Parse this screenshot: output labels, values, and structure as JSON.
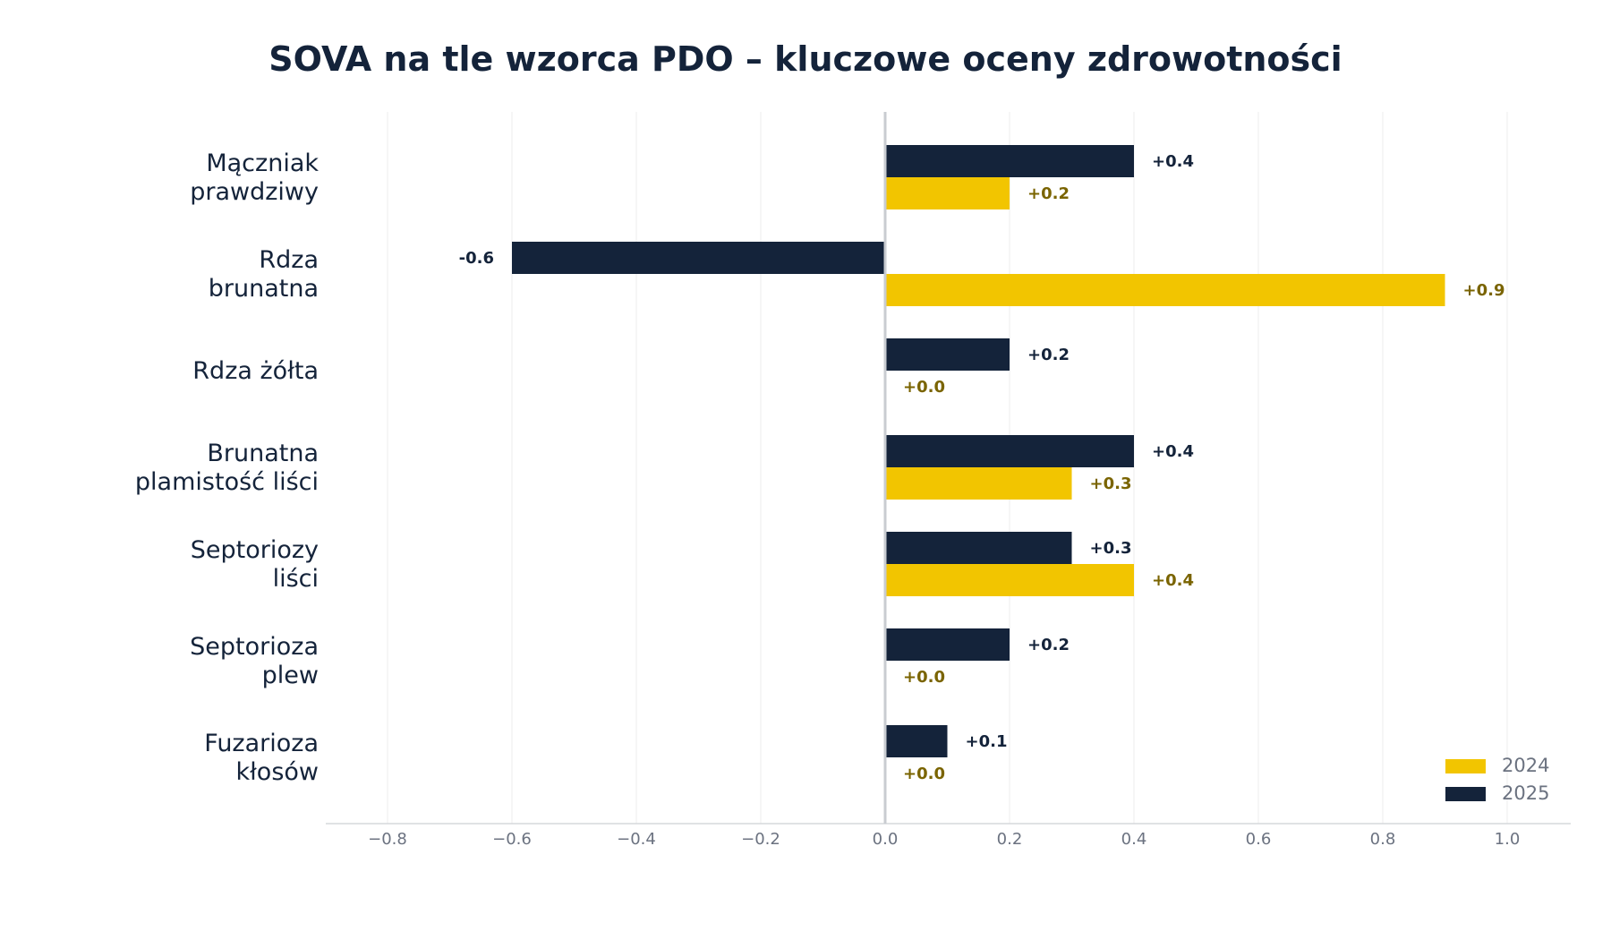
{
  "chart_data": {
    "type": "bar",
    "orientation": "horizontal",
    "title": "SOVA na tle wzorca PDO – kluczowe oceny zdrowotności",
    "xlabel": "",
    "ylabel": "",
    "categories": [
      [
        "Mączniak",
        "prawdziwy"
      ],
      [
        "Rdza",
        "brunatna"
      ],
      [
        "Rdza żółta"
      ],
      [
        "Brunatna",
        "plamistość liści"
      ],
      [
        "Septoriozy",
        "liści"
      ],
      [
        "Septorioza",
        "plew"
      ],
      [
        "Fuzarioza",
        "kłosów"
      ]
    ],
    "series": [
      {
        "name": "2025",
        "color": "#14233a",
        "label_color": "#14233a",
        "values": [
          0.4,
          -0.6,
          0.2,
          0.4,
          0.3,
          0.2,
          0.1
        ],
        "labels": [
          "+0.4",
          "-0.6",
          "+0.2",
          "+0.4",
          "+0.3",
          "+0.2",
          "+0.1"
        ]
      },
      {
        "name": "2024",
        "color": "#f2c500",
        "label_color": "#7a6400",
        "values": [
          0.2,
          0.9,
          0.0,
          0.3,
          0.4,
          0.0,
          0.0
        ],
        "labels": [
          "+0.2",
          "+0.9",
          "+0.0",
          "+0.3",
          "+0.4",
          "+0.0",
          "+0.0"
        ]
      }
    ],
    "xlim": [
      -0.9,
      1.1
    ],
    "xticks": [
      -0.8,
      -0.6,
      -0.4,
      -0.2,
      0.0,
      0.2,
      0.4,
      0.6,
      0.8,
      1.0
    ],
    "xtick_labels": [
      "−0.8",
      "−0.6",
      "−0.4",
      "−0.2",
      "0.0",
      "0.2",
      "0.4",
      "0.6",
      "0.8",
      "1.0"
    ],
    "grid": "vertical",
    "legend": {
      "position": "bottom-right",
      "order": [
        "2024",
        "2025"
      ]
    }
  }
}
